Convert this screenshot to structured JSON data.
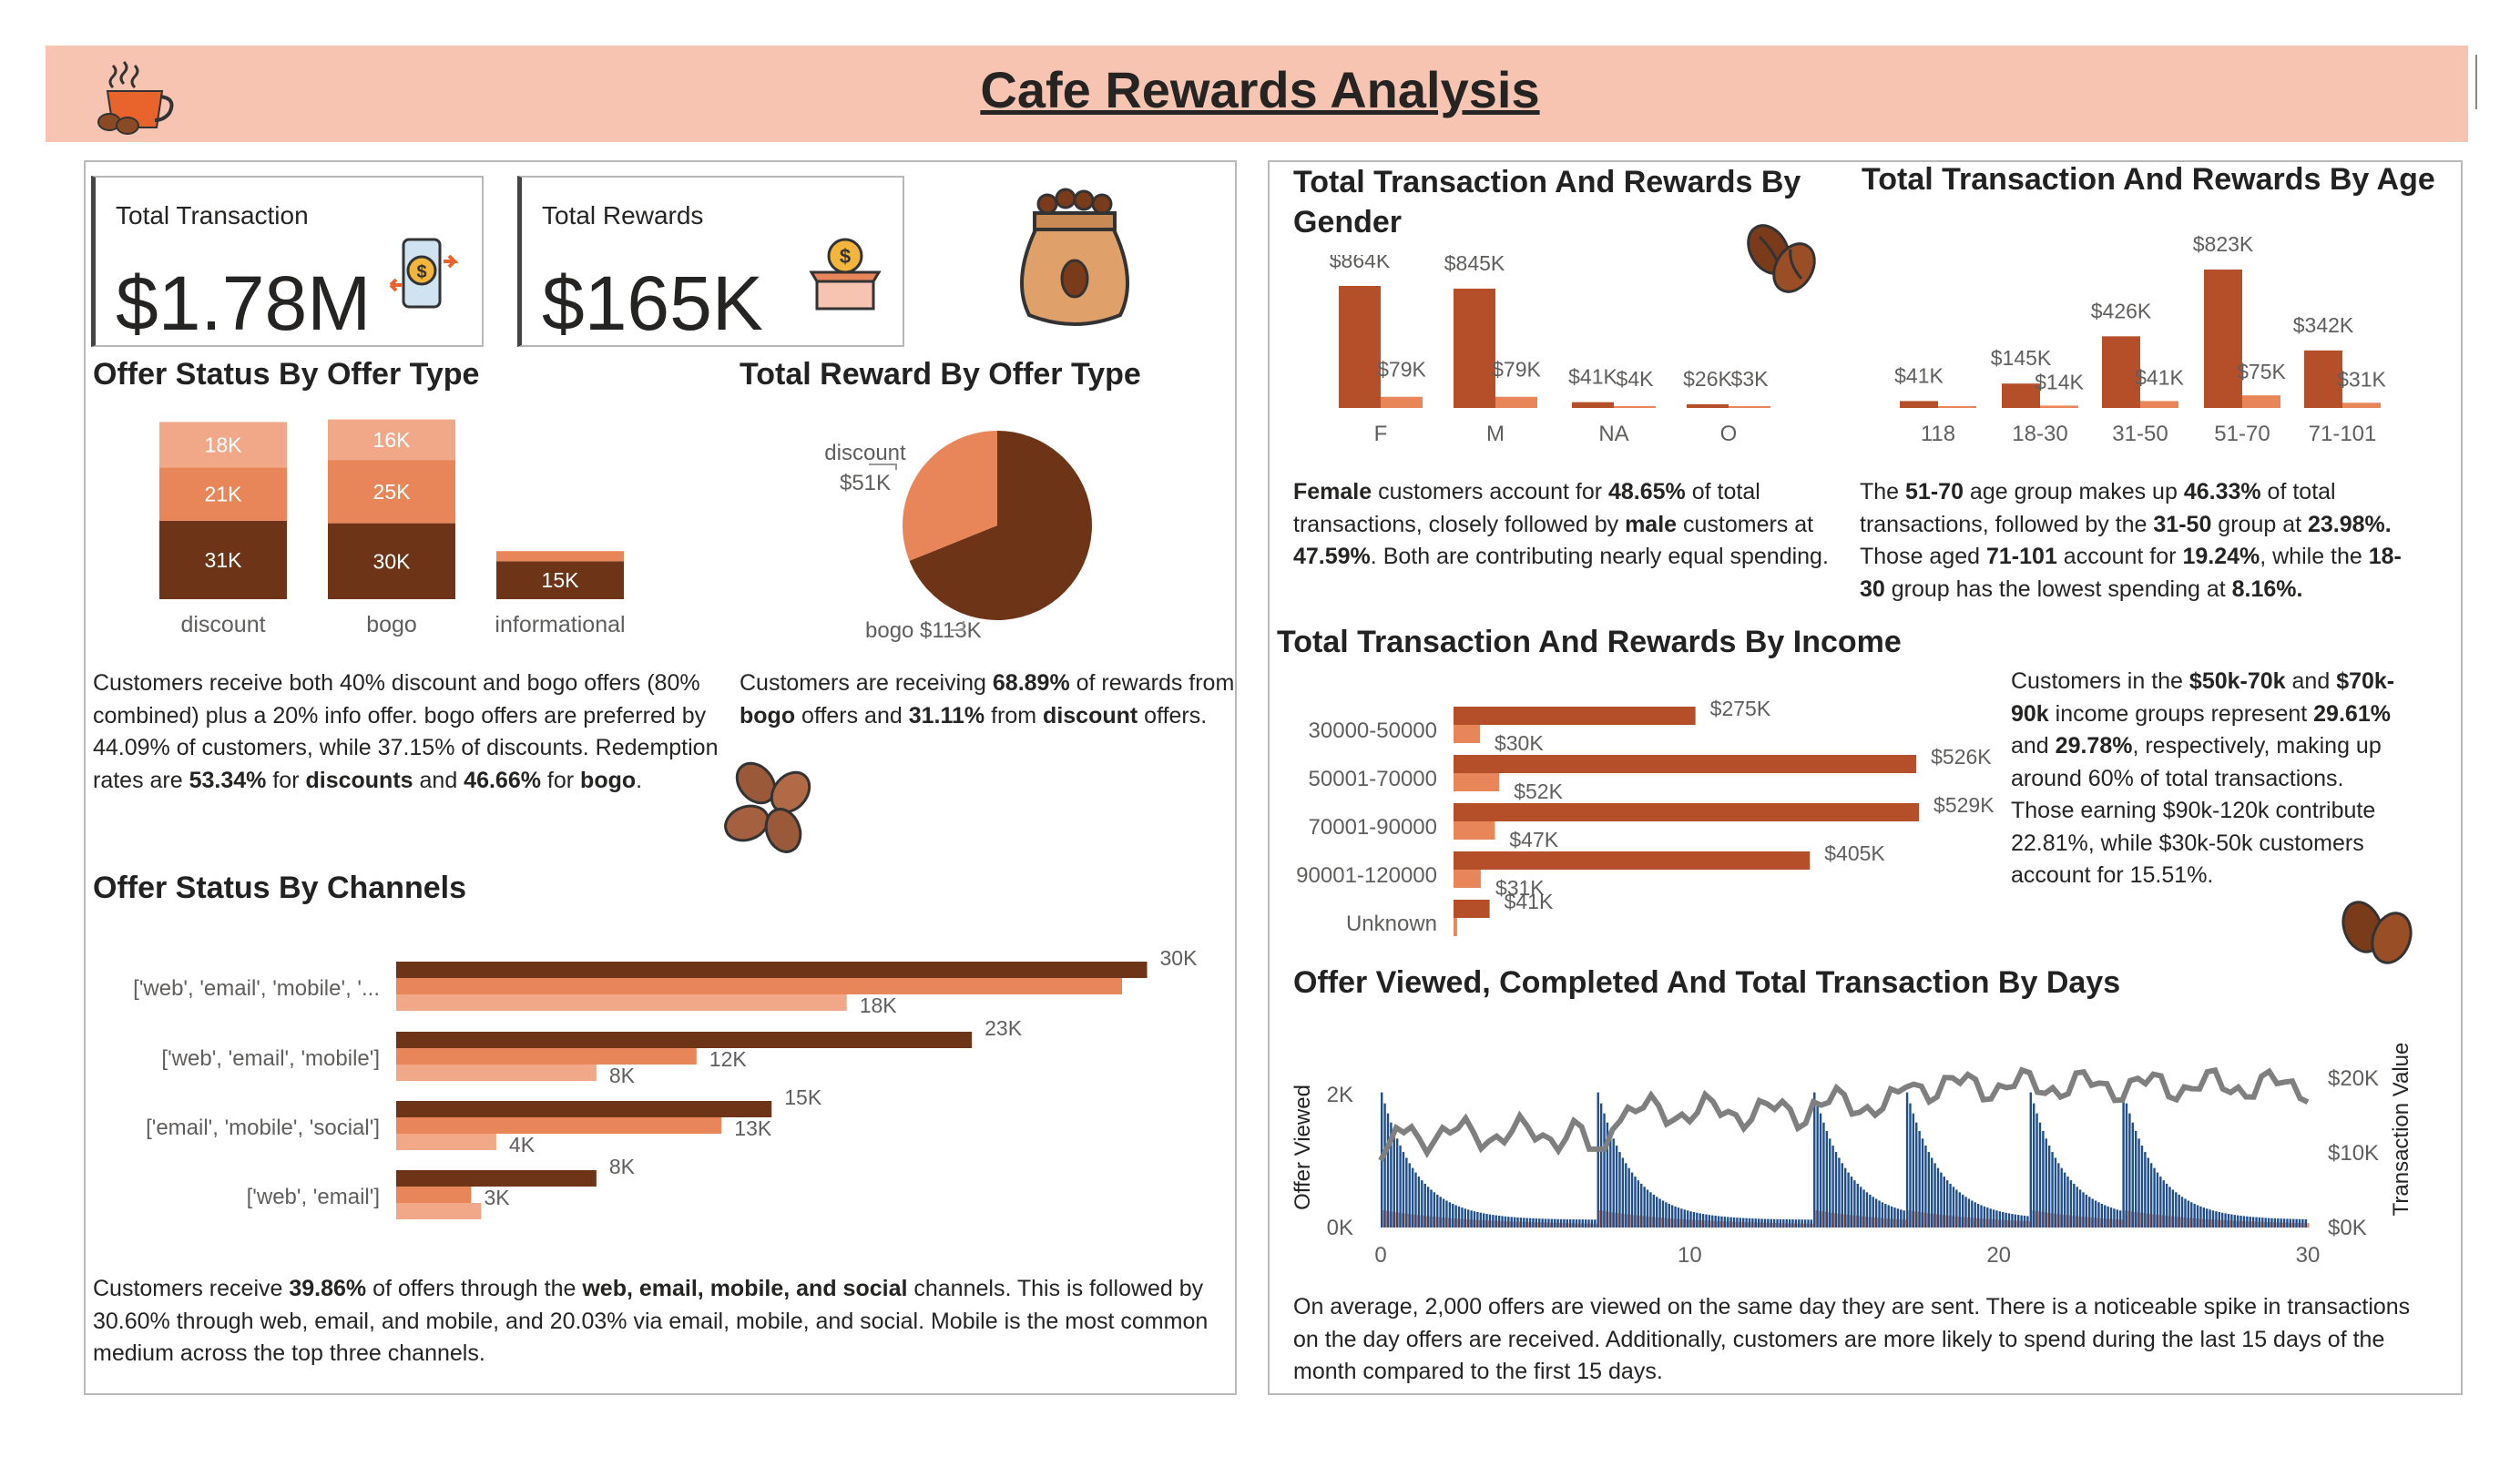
{
  "header": {
    "title": "Cafe Rewards Analysis"
  },
  "kpis": {
    "total_transaction_label": "Total Transaction",
    "total_transaction_value": "$1.78M",
    "total_rewards_label": "Total Rewards",
    "total_rewards_value": "$165K"
  },
  "offer_status_by_type": {
    "title": "Offer Status By Offer Type",
    "paragraph_html": "Customers receive both 40% discount and bogo offers (80% combined) plus a 20% info offer. bogo offers are preferred by 44.09% of customers, while 37.15% of discounts. Redemption rates are <b>53.34%</b> for <b>discounts</b> and <b>46.66%</b> for <b>bogo</b>."
  },
  "reward_by_offer_type": {
    "title": "Total Reward By Offer Type",
    "paragraph_html": "Customers are receiving <b>68.89%</b> of rewards from <b>bogo</b> offers and <b>31.11%</b> from <b>discount</b> offers."
  },
  "offer_status_by_channels": {
    "title": "Offer Status By Channels",
    "paragraph_html": "Customers receive <b>39.86%</b> of offers through the <b>web, email, mobile, and social</b> channels. This is followed by 30.60% through web, email, and mobile, and 20.03% via email, mobile, and social. Mobile is the most common medium across the top three channels."
  },
  "by_gender": {
    "title": "Total Transaction And Rewards By Gender",
    "paragraph_html": "<b>Female</b> customers account for <b>48.65%</b> of total transactions, closely followed by <b>male</b> customers at <b>47.59%</b>. Both are contributing nearly equal spending."
  },
  "by_age": {
    "title": "Total Transaction And Rewards By Age",
    "paragraph_html": "The <b>51-70</b> age group makes up <b>46.33%</b> of total transactions, followed by the <b>31-50</b> group at <b>23.98%.</b> Those aged <b>71-101</b> account for <b>19.24%</b>, while the <b>18-30</b> group has the lowest spending at <b>8.16%.</b>"
  },
  "by_income": {
    "title": "Total Transaction And Rewards By Income",
    "paragraph_html": "Customers in the <b>$50k-70k</b> and <b>$70k-90k</b> income groups represent <b>29.61%</b> and <b>29.78%</b>, respectively, making up around 60% of total transactions. Those earning $90k-120k contribute 22.81%, while $30k-50k customers account for 15.51%."
  },
  "by_days": {
    "title": "Offer Viewed, Completed And Total Transaction By Days",
    "paragraph_html": "On average, 2,000 offers are viewed on the same day they are sent. There is a noticeable spike in transactions on the day offers are received. Additionally, customers are more likely to spend during the last 15 days of the month compared to the first 15 days."
  },
  "colors": {
    "header_bg": "#f6c4b0",
    "dark_brown": "#6e3418",
    "rust": "#b54f2a",
    "orange": "#e8865a",
    "light_orange": "#f0a888",
    "navy": "#1f4e8c",
    "gray_line": "#7f7f7f"
  },
  "icons": [
    "coffee-cup-icon",
    "mobile-payment-icon",
    "reward-box-icon",
    "coffee-sack-icon",
    "coffee-beans-icon"
  ],
  "chart_data": [
    {
      "id": "offer_status_by_type",
      "type": "bar",
      "stacked": true,
      "categories": [
        "discount",
        "bogo",
        "informational"
      ],
      "series": [
        {
          "values": [
            31,
            30,
            15
          ],
          "labels": [
            "31K",
            "30K",
            "15K"
          ],
          "color": "#6e3418"
        },
        {
          "values": [
            21,
            25,
            4
          ],
          "labels": [
            "21K",
            "25K",
            ""
          ],
          "color": "#e8865a"
        },
        {
          "values": [
            18,
            16,
            0
          ],
          "labels": [
            "18K",
            "16K",
            ""
          ],
          "color": "#f0a888"
        }
      ]
    },
    {
      "id": "reward_by_offer_type",
      "type": "pie",
      "slices": [
        {
          "name": "bogo",
          "value": 113,
          "label": "bogo $113K",
          "color": "#6e3418"
        },
        {
          "name": "discount",
          "value": 51,
          "label_line1": "discount",
          "label_line2": "$51K",
          "color": "#e8865a"
        }
      ]
    },
    {
      "id": "offer_status_by_channels",
      "type": "bar",
      "orientation": "horizontal",
      "categories": [
        "['web', 'email', 'mobile', '...",
        "['web', 'email', 'mobile']",
        "['email', 'mobile', 'social']",
        "['web', 'email']"
      ],
      "series": [
        {
          "values": [
            30,
            23,
            15,
            8
          ],
          "labels": [
            "30K",
            "23K",
            "15K",
            "8K"
          ],
          "color": "#6e3418"
        },
        {
          "values": [
            29,
            12,
            13,
            3
          ],
          "labels": [
            "",
            "12K",
            "13K",
            "3K"
          ],
          "color": "#e8865a"
        },
        {
          "values": [
            18,
            8,
            4,
            3.4
          ],
          "labels": [
            "18K",
            "8K",
            "4K",
            ""
          ],
          "color": "#f0a888"
        }
      ],
      "xlim": [
        0,
        31
      ]
    },
    {
      "id": "by_gender",
      "type": "bar",
      "categories": [
        "F",
        "M",
        "NA",
        "O"
      ],
      "series": [
        {
          "values": [
            864,
            845,
            41,
            26
          ],
          "labels": [
            "$864K",
            "$845K",
            "$41K",
            "$26K"
          ],
          "color": "#b54f2a"
        },
        {
          "values": [
            79,
            79,
            4,
            3
          ],
          "labels": [
            "$79K",
            "$79K",
            "$4K",
            "$3K"
          ],
          "color": "#e8865a"
        }
      ],
      "ylim": [
        0,
        900
      ]
    },
    {
      "id": "by_age",
      "type": "bar",
      "categories": [
        "118",
        "18-30",
        "31-50",
        "51-70",
        "71-101"
      ],
      "series": [
        {
          "values": [
            41,
            145,
            426,
            823,
            342
          ],
          "labels": [
            "$41K",
            "$145K",
            "$426K",
            "$823K",
            "$342K"
          ],
          "color": "#b54f2a"
        },
        {
          "values": [
            4,
            14,
            41,
            75,
            31
          ],
          "labels": [
            "",
            "$14K",
            "$41K",
            "$75K",
            "$31K"
          ],
          "color": "#e8865a"
        }
      ],
      "ylim": [
        0,
        850
      ]
    },
    {
      "id": "by_income",
      "type": "bar",
      "orientation": "horizontal",
      "categories": [
        "30000-50000",
        "50001-70000",
        "70001-90000",
        "90001-120000",
        "Unknown"
      ],
      "series": [
        {
          "values": [
            275,
            526,
            529,
            405,
            41
          ],
          "labels": [
            "$275K",
            "$526K",
            "$529K",
            "$405K",
            "$41K"
          ],
          "color": "#b54f2a"
        },
        {
          "values": [
            30,
            52,
            47,
            31,
            4
          ],
          "labels": [
            "$30K",
            "$52K",
            "$47K",
            "$31K",
            ""
          ],
          "color": "#e8865a"
        }
      ],
      "xlim": [
        0,
        530
      ]
    },
    {
      "id": "by_days",
      "type": "bar+line",
      "x_ticks": [
        "0",
        "10",
        "20",
        "30"
      ],
      "ylabel_left": "Offer Viewed",
      "ylabel_right": "Transaction Value",
      "y_left_ticks": [
        "0K",
        "2K"
      ],
      "y_right_ticks": [
        "$0K",
        "$10K",
        "$20K"
      ],
      "offer_days": [
        0,
        7,
        14,
        17,
        21,
        24
      ],
      "viewed_peak": 2000,
      "xlim": [
        0,
        30
      ]
    }
  ]
}
